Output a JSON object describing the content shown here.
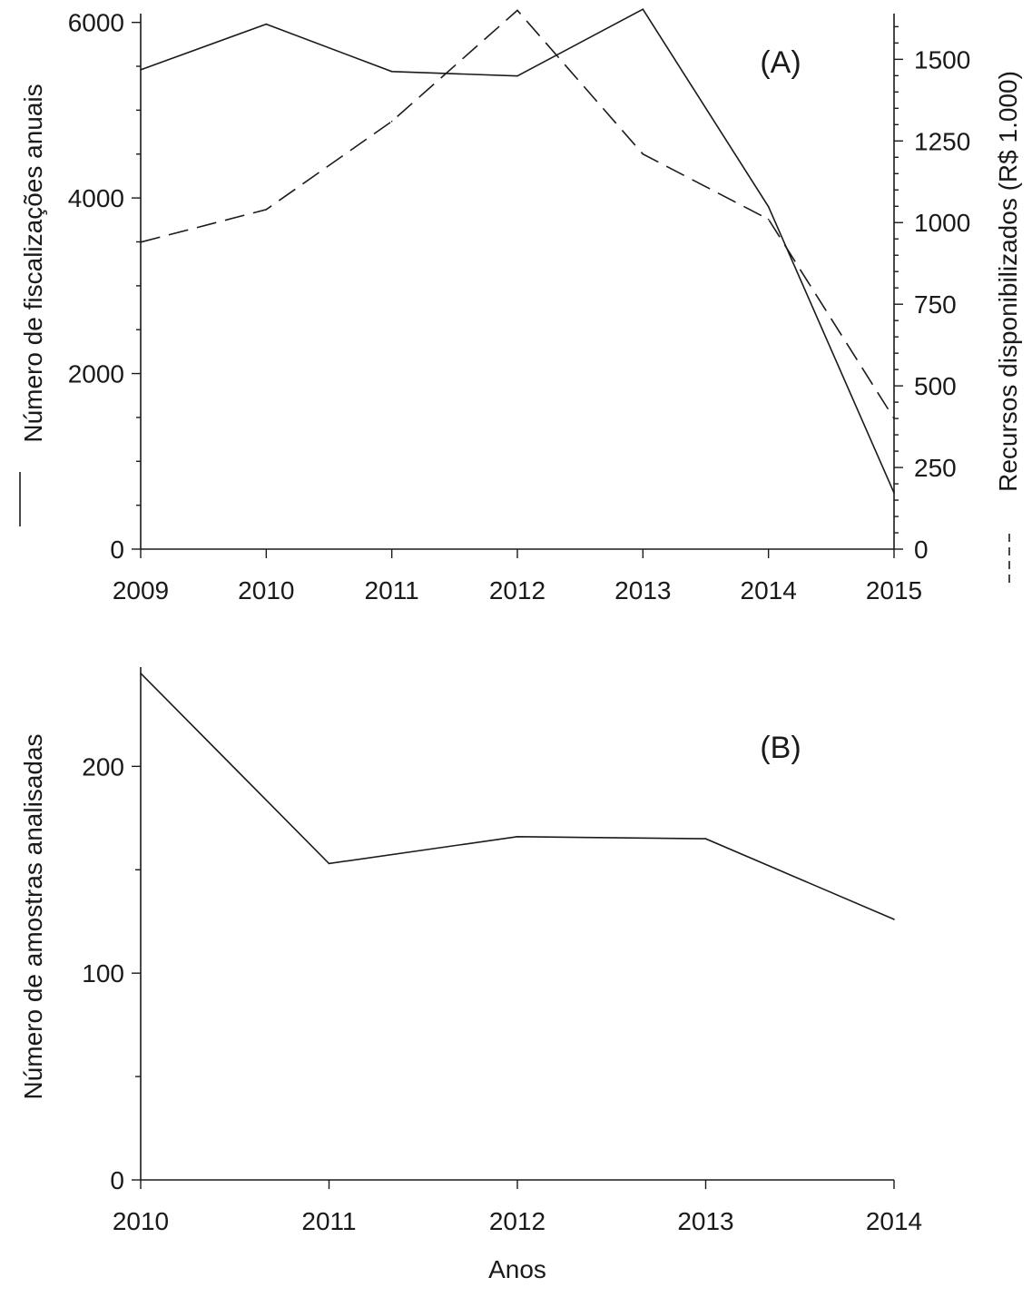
{
  "chart_data": [
    {
      "type": "line",
      "panel_label": "(A)",
      "x": [
        2009,
        2010,
        2011,
        2012,
        2013,
        2014,
        2015
      ],
      "xlim": [
        2009,
        2015
      ],
      "x_ticks": [
        "2009",
        "2010",
        "2011",
        "2012",
        "2013",
        "2014",
        "2015"
      ],
      "ylabel": "Número de fiscalizações anuais",
      "ylabel_legend_symbol": "solid-line",
      "ylim": [
        0,
        6100
      ],
      "y_ticks": [
        0,
        2000,
        4000,
        6000
      ],
      "y_tick_labels": [
        "0",
        "2000",
        "4000",
        "6000"
      ],
      "y_minor_step": 500,
      "y2label": "Recursos disponibilizados (R$ 1.000)",
      "y2label_legend_symbol": "dashed-line",
      "y2lim": [
        0,
        1640
      ],
      "y2_ticks": [
        0,
        250,
        500,
        750,
        1000,
        1250,
        1500
      ],
      "y2_tick_labels": [
        "0",
        "250",
        "500",
        "750",
        "1000",
        "1250",
        "1500"
      ],
      "y2_minor_step": 50,
      "series": [
        {
          "axis": "left",
          "style": "solid",
          "points": [
            [
              2009,
              5460
            ],
            [
              2010,
              5980
            ],
            [
              2011,
              5440
            ],
            [
              2012,
              5390
            ],
            [
              2013,
              6150
            ],
            [
              2014,
              3900
            ],
            [
              2015,
              640
            ]
          ]
        },
        {
          "axis": "right",
          "style": "dashed",
          "points": [
            [
              2009,
              940
            ],
            [
              2010,
              1040
            ],
            [
              2011,
              1310
            ],
            [
              2012,
              1650
            ],
            [
              2013,
              1210
            ],
            [
              2014,
              1010
            ],
            [
              2015,
              400
            ]
          ]
        }
      ]
    },
    {
      "type": "line",
      "panel_label": "(B)",
      "x": [
        2010,
        2011,
        2012,
        2013,
        2014
      ],
      "xlim": [
        2010,
        2014
      ],
      "x_ticks": [
        "2010",
        "2011",
        "2012",
        "2013",
        "2014"
      ],
      "xlabel": "Anos",
      "ylabel": "Número de amostras analisadas",
      "ylim": [
        0,
        248
      ],
      "y_ticks": [
        0,
        100,
        200
      ],
      "y_tick_labels": [
        "0",
        "100",
        "200"
      ],
      "y_minor_step": 50,
      "series": [
        {
          "axis": "left",
          "style": "solid",
          "points": [
            [
              2010,
              245
            ],
            [
              2011,
              153
            ],
            [
              2012,
              166
            ],
            [
              2013,
              165
            ],
            [
              2014,
              126
            ]
          ]
        }
      ]
    }
  ]
}
